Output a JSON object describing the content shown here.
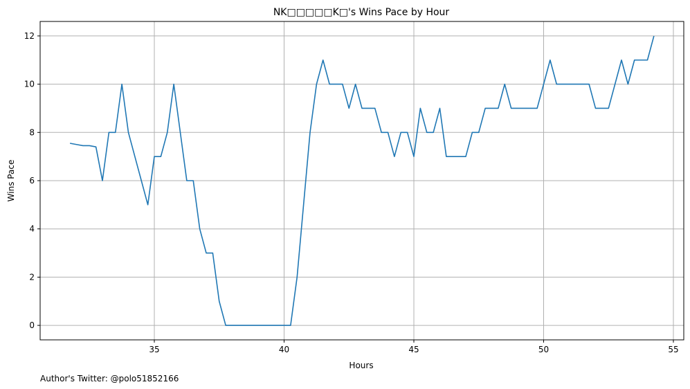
{
  "chart_data": {
    "type": "line",
    "title": "NK□□□□□K□'s Wins Pace by Hour",
    "xlabel": "Hours",
    "ylabel": "Wins Pace",
    "xlim": [
      30.6,
      55.4
    ],
    "ylim": [
      -0.6,
      12.6
    ],
    "xticks": [
      35,
      40,
      45,
      50,
      55
    ],
    "yticks": [
      0,
      2,
      4,
      6,
      8,
      10,
      12
    ],
    "grid": true,
    "line_color": "#1f77b4",
    "series": [
      {
        "x": [
          31.75,
          32.0,
          32.25,
          32.5,
          32.75,
          33.0,
          33.25,
          33.5,
          33.75,
          34.0,
          34.25,
          34.5,
          34.75,
          35.0,
          35.25,
          35.5,
          35.75,
          36.0,
          36.25,
          36.5,
          36.75,
          37.0,
          37.25,
          37.5,
          37.75,
          38.0,
          38.25,
          38.5,
          38.75,
          39.0,
          39.25,
          39.5,
          39.75,
          40.0,
          40.25,
          40.5,
          40.75,
          41.0,
          41.25,
          41.5,
          41.75,
          42.0,
          42.25,
          42.5,
          42.75,
          43.0,
          43.25,
          43.5,
          43.75,
          44.0,
          44.25,
          44.5,
          44.75,
          45.0,
          45.25,
          45.5,
          45.75,
          46.0,
          46.25,
          46.5,
          46.75,
          47.0,
          47.25,
          47.5,
          47.75,
          48.0,
          48.25,
          48.5,
          48.75,
          49.0,
          49.25,
          49.5,
          49.75,
          50.0,
          50.25,
          50.5,
          50.75,
          51.0,
          51.25,
          51.5,
          51.75,
          52.0,
          52.25,
          52.5,
          52.75,
          53.0,
          53.25,
          53.5,
          53.75,
          54.0,
          54.25
        ],
        "y": [
          7.55,
          7.5,
          7.45,
          7.45,
          7.4,
          6.0,
          8.0,
          8.0,
          10.0,
          8.0,
          7.0,
          6.0,
          5.0,
          7.0,
          7.0,
          8.0,
          10.0,
          8.0,
          6.0,
          6.0,
          4.0,
          3.0,
          3.0,
          1.0,
          0.0,
          0.0,
          0.0,
          0.0,
          0.0,
          0.0,
          0.0,
          0.0,
          0.0,
          0.0,
          0.0,
          2.0,
          5.0,
          8.0,
          10.0,
          11.0,
          10.0,
          10.0,
          10.0,
          9.0,
          10.0,
          9.0,
          9.0,
          9.0,
          8.0,
          8.0,
          7.0,
          8.0,
          8.0,
          7.0,
          9.0,
          8.0,
          8.0,
          9.0,
          7.0,
          7.0,
          7.0,
          7.0,
          8.0,
          8.0,
          9.0,
          9.0,
          9.0,
          10.0,
          9.0,
          9.0,
          9.0,
          9.0,
          9.0,
          10.0,
          11.0,
          10.0,
          10.0,
          10.0,
          10.0,
          10.0,
          10.0,
          9.0,
          9.0,
          9.0,
          10.0,
          11.0,
          10.0,
          11.0,
          11.0,
          11.0,
          12.0
        ]
      }
    ]
  },
  "footer": {
    "text": "Author's Twitter: @polo51852166"
  }
}
